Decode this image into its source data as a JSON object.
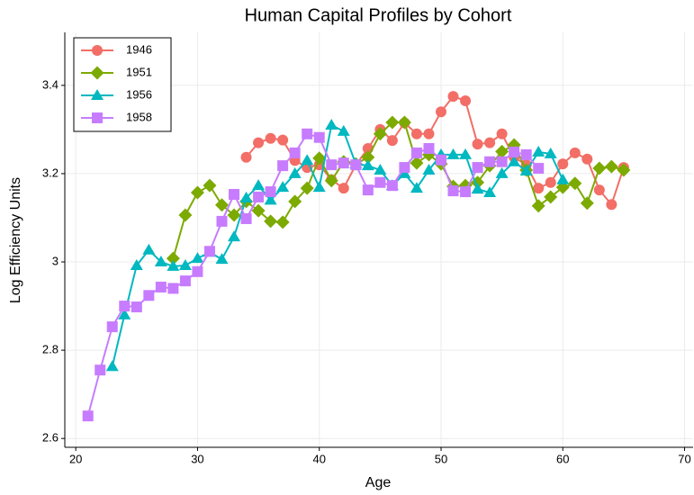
{
  "chart_data": {
    "type": "line",
    "title": "Human Capital Profiles by Cohort",
    "x_label": "Age",
    "y_label": "Log Efficiency Units",
    "xlim": [
      19.1,
      70.7
    ],
    "ylim": [
      2.58,
      3.52
    ],
    "xticks": [
      20,
      30,
      40,
      50,
      60,
      70
    ],
    "yticks": [
      2.6,
      2.8,
      3,
      3.2,
      3.4
    ],
    "grid": true,
    "legend": "top-left",
    "series": [
      {
        "name": "1946",
        "color": "#f26e66",
        "marker": "circle",
        "x": [
          34,
          35,
          36,
          37,
          38,
          39,
          40,
          41,
          42,
          43,
          44,
          45,
          46,
          47,
          48,
          49,
          50,
          51,
          52,
          53,
          54,
          55,
          56,
          57,
          58,
          59,
          60,
          61,
          62,
          63,
          64,
          65
        ],
        "values": [
          3.237,
          3.27,
          3.28,
          3.276,
          3.23,
          3.214,
          3.22,
          3.186,
          3.167,
          3.22,
          3.257,
          3.3,
          3.275,
          3.315,
          3.29,
          3.29,
          3.34,
          3.375,
          3.365,
          3.267,
          3.27,
          3.29,
          3.237,
          3.22,
          3.167,
          3.18,
          3.222,
          3.247,
          3.233,
          3.163,
          3.13,
          3.214
        ]
      },
      {
        "name": "1951",
        "color": "#7caa00",
        "marker": "diamond",
        "x": [
          28,
          29,
          30,
          31,
          32,
          33,
          34,
          35,
          36,
          37,
          38,
          39,
          40,
          41,
          42,
          43,
          44,
          45,
          46,
          47,
          48,
          49,
          50,
          51,
          52,
          53,
          54,
          55,
          56,
          57,
          58,
          59,
          60,
          61,
          62,
          63,
          64,
          65
        ],
        "values": [
          3.008,
          3.106,
          3.157,
          3.173,
          3.129,
          3.106,
          3.137,
          3.116,
          3.092,
          3.09,
          3.137,
          3.167,
          3.235,
          3.184,
          3.227,
          3.222,
          3.237,
          3.29,
          3.316,
          3.316,
          3.224,
          3.243,
          3.222,
          3.171,
          3.173,
          3.18,
          3.218,
          3.25,
          3.265,
          3.208,
          3.127,
          3.147,
          3.169,
          3.178,
          3.133,
          3.212,
          3.216,
          3.208
        ]
      },
      {
        "name": "1956",
        "color": "#00b8c0",
        "marker": "triangle",
        "x": [
          23,
          24,
          25,
          26,
          27,
          28,
          29,
          30,
          31,
          32,
          33,
          34,
          35,
          36,
          37,
          38,
          39,
          40,
          41,
          42,
          43,
          44,
          45,
          46,
          47,
          48,
          49,
          50,
          51,
          52,
          53,
          54,
          55,
          56,
          57,
          58,
          59,
          60
        ],
        "values": [
          2.763,
          2.88,
          2.992,
          3.027,
          3.0,
          2.99,
          2.992,
          3.008,
          3.022,
          3.006,
          3.057,
          3.145,
          3.173,
          3.14,
          3.169,
          3.2,
          3.23,
          3.169,
          3.31,
          3.296,
          3.222,
          3.218,
          3.208,
          3.173,
          3.2,
          3.167,
          3.208,
          3.243,
          3.243,
          3.243,
          3.165,
          3.157,
          3.2,
          3.227,
          3.206,
          3.249,
          3.245,
          3.186
        ]
      },
      {
        "name": "1958",
        "color": "#c77cff",
        "marker": "square",
        "x": [
          21,
          22,
          23,
          24,
          25,
          26,
          27,
          28,
          29,
          30,
          31,
          32,
          33,
          34,
          35,
          36,
          37,
          38,
          39,
          40,
          41,
          42,
          43,
          44,
          45,
          46,
          47,
          48,
          49,
          50,
          51,
          52,
          53,
          54,
          55,
          56,
          57,
          58
        ],
        "values": [
          2.651,
          2.755,
          2.853,
          2.9,
          2.898,
          2.924,
          2.943,
          2.94,
          2.957,
          2.978,
          3.024,
          3.092,
          3.153,
          3.098,
          3.147,
          3.159,
          3.218,
          3.247,
          3.29,
          3.282,
          3.22,
          3.224,
          3.22,
          3.163,
          3.18,
          3.173,
          3.214,
          3.247,
          3.257,
          3.231,
          3.161,
          3.159,
          3.214,
          3.227,
          3.227,
          3.249,
          3.243,
          3.212
        ]
      }
    ]
  }
}
